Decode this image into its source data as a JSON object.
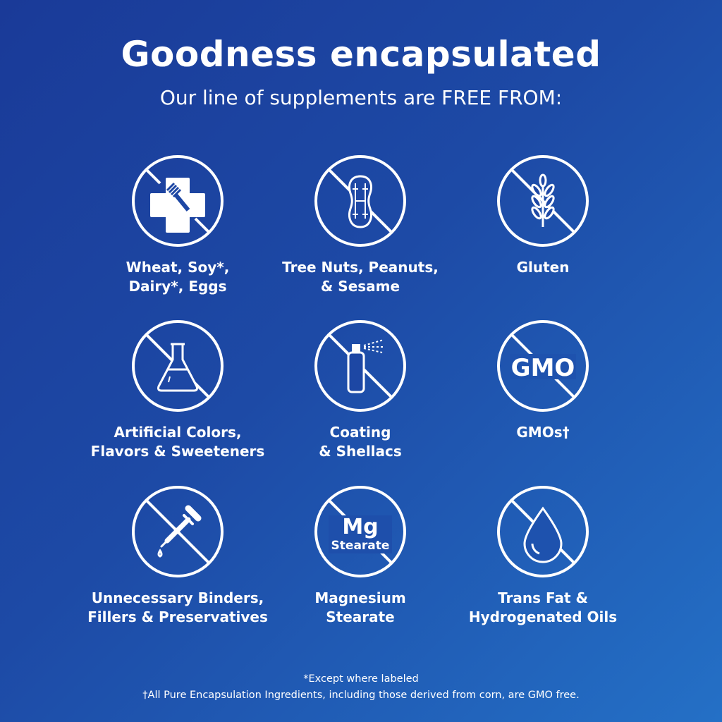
{
  "header": {
    "title": "Goodness encapsulated",
    "subtitle": "Our line of supplements are FREE FROM:"
  },
  "colors": {
    "background_start": "#1a3a98",
    "background_end": "#2470c6",
    "icon": "#ffffff"
  },
  "items": [
    {
      "icon": "no-wheat-soy-dairy-eggs-icon",
      "line1": "Wheat, Soy*,",
      "line2": "Dairy*, Eggs"
    },
    {
      "icon": "no-nuts-icon",
      "line1": "Tree Nuts, Peanuts,",
      "line2": "& Sesame"
    },
    {
      "icon": "no-gluten-icon",
      "line1": "Gluten",
      "line2": ""
    },
    {
      "icon": "no-artificial-flask-icon",
      "line1": "Artificial Colors,",
      "line2": "Flavors & Sweeteners"
    },
    {
      "icon": "no-coating-spray-icon",
      "line1": "Coating",
      "line2": "& Shellacs"
    },
    {
      "icon": "no-gmo-icon",
      "icon_text": "GMO",
      "line1": "GMOs†",
      "line2": ""
    },
    {
      "icon": "no-binders-dropper-icon",
      "line1": "Unnecessary Binders,",
      "line2": "Fillers & Preservatives"
    },
    {
      "icon": "no-mg-stearate-icon",
      "icon_text": "Mg",
      "icon_subtext": "Stearate",
      "line1": "Magnesium",
      "line2": "Stearate"
    },
    {
      "icon": "no-trans-fat-drop-icon",
      "line1": "Trans Fat &",
      "line2": "Hydrogenated Oils"
    }
  ],
  "footer": {
    "note1": "*Except where labeled",
    "note2": "†All Pure Encapsulation Ingredients, including those derived from corn, are GMO free."
  }
}
